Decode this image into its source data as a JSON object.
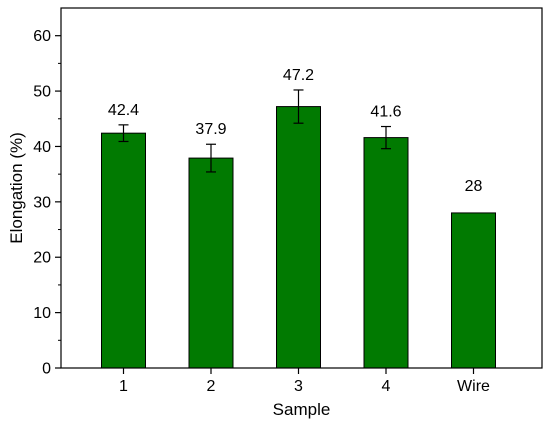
{
  "chart_data": {
    "type": "bar",
    "title": "",
    "xlabel": "Sample",
    "ylabel": "Elongation (%)",
    "categories": [
      "1",
      "2",
      "3",
      "4",
      "Wire"
    ],
    "values": [
      42.4,
      37.9,
      47.2,
      41.6,
      28
    ],
    "value_labels": [
      "42.4",
      "37.9",
      "47.2",
      "41.6",
      "28"
    ],
    "errors": [
      1.5,
      2.5,
      3.0,
      2.0,
      null
    ],
    "ylim": [
      0,
      65
    ],
    "yticks": [
      0,
      10,
      20,
      30,
      40,
      50,
      60
    ],
    "ytick_labels": [
      "0",
      "10",
      "20",
      "30",
      "40",
      "50",
      "60"
    ],
    "grid": false,
    "legend": "none",
    "bar_color": "#017a01",
    "bar_edge_color": "#000000"
  }
}
